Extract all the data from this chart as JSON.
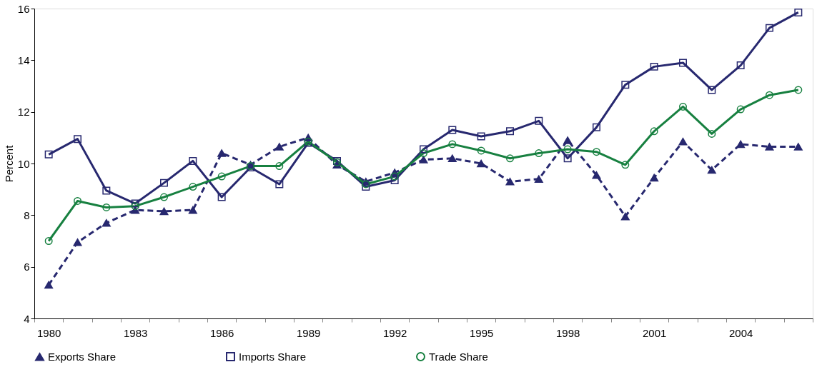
{
  "chart_data": {
    "type": "line",
    "ylabel": "Percent",
    "categories": [
      "1980",
      null,
      null,
      "1983",
      null,
      null,
      "1986",
      null,
      null,
      "1989",
      null,
      null,
      "1992",
      null,
      null,
      "1995",
      null,
      null,
      "1998",
      null,
      null,
      "2001",
      null,
      null,
      "2004",
      null,
      null
    ],
    "ylim": [
      4,
      16
    ],
    "yticks": [
      4,
      6,
      8,
      10,
      12,
      14,
      16
    ],
    "grid": false,
    "legend": "bottom",
    "series": [
      {
        "name": "Exports Share",
        "color": "#27286f",
        "line_style": "dashed",
        "marker": "triangle",
        "values": [
          5.3,
          6.95,
          7.7,
          8.2,
          8.15,
          8.2,
          10.4,
          9.95,
          10.65,
          11.0,
          9.95,
          9.3,
          9.65,
          10.15,
          10.2,
          10.0,
          9.3,
          9.4,
          10.9,
          9.55,
          7.95,
          9.45,
          10.85,
          9.75,
          10.75,
          10.65,
          10.65
        ]
      },
      {
        "name": "Imports Share",
        "color": "#27286f",
        "line_style": "solid",
        "marker": "square",
        "values": [
          10.35,
          10.95,
          8.95,
          8.45,
          9.25,
          10.1,
          8.7,
          9.85,
          9.2,
          10.8,
          10.1,
          9.1,
          9.35,
          10.55,
          11.3,
          11.05,
          11.25,
          11.65,
          10.2,
          11.4,
          13.05,
          13.75,
          13.9,
          12.85,
          13.8,
          15.25,
          15.85
        ]
      },
      {
        "name": "Trade Share",
        "color": "#178040",
        "line_style": "solid",
        "marker": "circle",
        "values": [
          7.0,
          8.55,
          8.3,
          8.35,
          8.7,
          9.1,
          9.5,
          9.9,
          9.9,
          10.85,
          10.05,
          9.2,
          9.5,
          10.4,
          10.75,
          10.5,
          10.2,
          10.4,
          10.55,
          10.45,
          9.95,
          11.25,
          12.2,
          11.15,
          12.1,
          12.65,
          12.85
        ]
      }
    ]
  }
}
